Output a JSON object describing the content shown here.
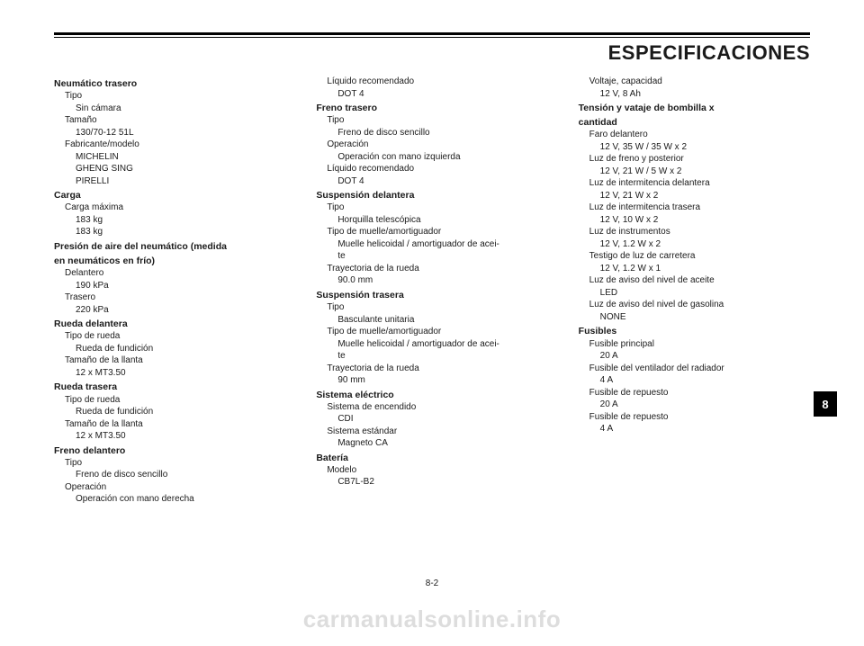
{
  "header": {
    "title": "ESPECIFICACIONES"
  },
  "page": {
    "tab": "8",
    "number": "8-2",
    "watermark": "carmanualsonline.info"
  },
  "columns": [
    {
      "sections": [
        {
          "heading": "Neumático trasero",
          "items": [
            {
              "label": "Tipo",
              "values": [
                "Sin cámara"
              ]
            },
            {
              "label": "Tamaño",
              "values": [
                "130/70-12 51L"
              ]
            },
            {
              "label": "Fabricante/modelo",
              "values": [
                "MICHELIN",
                "GHENG SING",
                "PIRELLI"
              ]
            }
          ]
        },
        {
          "heading": "Carga",
          "items": [
            {
              "label": "Carga máxima",
              "values": [
                "183 kg",
                "183 kg"
              ]
            }
          ]
        },
        {
          "heading": "Presión de aire del neumático (medida",
          "heading2": "en neumáticos en frío)",
          "items": [
            {
              "label": "Delantero",
              "values": [
                "190 kPa"
              ]
            },
            {
              "label": "Trasero",
              "values": [
                "220 kPa"
              ]
            }
          ]
        },
        {
          "heading": "Rueda delantera",
          "items": [
            {
              "label": "Tipo de rueda",
              "values": [
                "Rueda de fundición"
              ]
            },
            {
              "label": "Tamaño de la llanta",
              "values": [
                "12 x MT3.50"
              ]
            }
          ]
        },
        {
          "heading": "Rueda trasera",
          "items": [
            {
              "label": "Tipo de rueda",
              "values": [
                "Rueda de fundición"
              ]
            },
            {
              "label": "Tamaño de la llanta",
              "values": [
                "12 x MT3.50"
              ]
            }
          ]
        },
        {
          "heading": "Freno delantero",
          "items": [
            {
              "label": "Tipo",
              "values": [
                "Freno de disco sencillo"
              ]
            },
            {
              "label": "Operación",
              "values": [
                "Operación con mano derecha"
              ]
            }
          ]
        }
      ]
    },
    {
      "sections": [
        {
          "items": [
            {
              "label": "Líquido recomendado",
              "values": [
                "DOT 4"
              ]
            }
          ]
        },
        {
          "heading": "Freno trasero",
          "items": [
            {
              "label": "Tipo",
              "values": [
                "Freno de disco sencillo"
              ]
            },
            {
              "label": "Operación",
              "values": [
                "Operación con mano izquierda"
              ]
            },
            {
              "label": "Líquido recomendado",
              "values": [
                "DOT 4"
              ]
            }
          ]
        },
        {
          "heading": "Suspensión delantera",
          "items": [
            {
              "label": "Tipo",
              "values": [
                "Horquilla telescópica"
              ]
            },
            {
              "label": "Tipo de muelle/amortiguador",
              "values": [
                "Muelle helicoidal / amortiguador de acei-",
                "te"
              ]
            },
            {
              "label": "Trayectoria de la rueda",
              "values": [
                "90.0 mm"
              ]
            }
          ]
        },
        {
          "heading": "Suspensión trasera",
          "items": [
            {
              "label": "Tipo",
              "values": [
                "Basculante unitaria"
              ]
            },
            {
              "label": "Tipo de muelle/amortiguador",
              "values": [
                "Muelle helicoidal / amortiguador de acei-",
                "te"
              ]
            },
            {
              "label": "Trayectoria de la rueda",
              "values": [
                "90 mm"
              ]
            }
          ]
        },
        {
          "heading": "Sistema eléctrico",
          "items": [
            {
              "label": "Sistema de encendido",
              "values": [
                "CDI"
              ]
            },
            {
              "label": "Sistema estándar",
              "values": [
                "Magneto CA"
              ]
            }
          ]
        },
        {
          "heading": "Batería",
          "items": [
            {
              "label": "Modelo",
              "values": [
                "CB7L-B2"
              ]
            }
          ]
        }
      ]
    },
    {
      "sections": [
        {
          "items": [
            {
              "label": "Voltaje, capacidad",
              "values": [
                "12 V, 8 Ah"
              ]
            }
          ]
        },
        {
          "heading": "Tensión y vataje de bombilla x",
          "heading2": "cantidad",
          "items": [
            {
              "label": "Faro delantero",
              "values": [
                "12 V, 35 W / 35 W x 2"
              ]
            },
            {
              "label": "Luz de freno y posterior",
              "values": [
                "12 V, 21 W / 5 W x 2"
              ]
            },
            {
              "label": "Luz de intermitencia delantera",
              "values": [
                "12 V, 21 W x 2"
              ]
            },
            {
              "label": "Luz de intermitencia trasera",
              "values": [
                "12 V, 10 W x 2"
              ]
            },
            {
              "label": "Luz de instrumentos",
              "values": [
                "12 V, 1.2 W x 2"
              ]
            },
            {
              "label": "Testigo de luz de carretera",
              "values": [
                "12 V, 1.2 W x 1"
              ]
            },
            {
              "label": "Luz de aviso del nivel de aceite",
              "values": [
                "LED"
              ]
            },
            {
              "label": "Luz de aviso del nivel de gasolina",
              "values": [
                "NONE"
              ]
            }
          ]
        },
        {
          "heading": "Fusibles",
          "items": [
            {
              "label": "Fusible principal",
              "values": [
                "20 A"
              ]
            },
            {
              "label": "Fusible del ventilador del radiador",
              "values": [
                "4 A"
              ]
            },
            {
              "label": "Fusible de repuesto",
              "values": [
                "20 A"
              ]
            },
            {
              "label": "Fusible de repuesto",
              "values": [
                "4 A"
              ]
            }
          ]
        }
      ]
    }
  ]
}
